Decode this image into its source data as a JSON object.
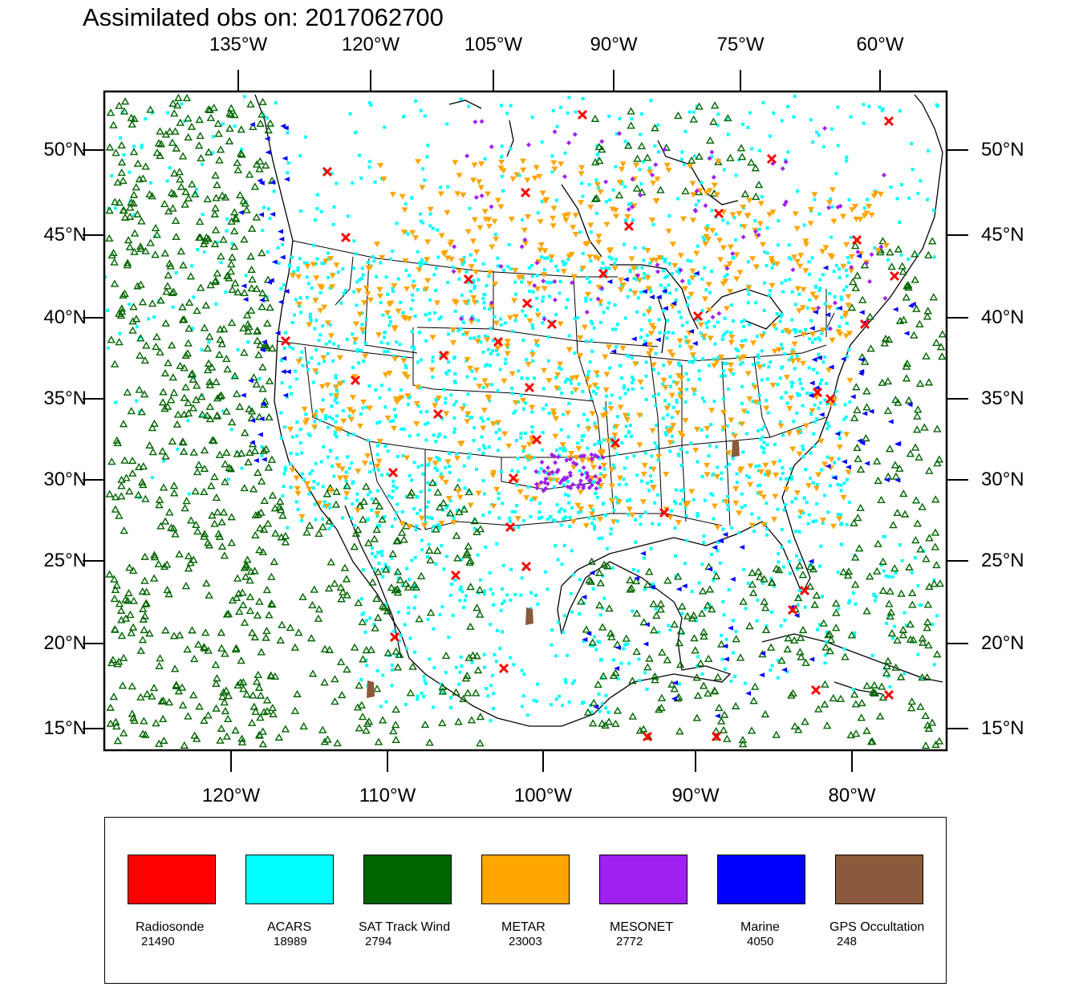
{
  "title": "Assimilated obs on: 2017062700",
  "top_lon_labels": [
    "135°W",
    "120°W",
    "105°W",
    "90°W",
    "75°W",
    "60°W"
  ],
  "bottom_lon_labels": [
    "120°W",
    "110°W",
    "100°W",
    "90°W",
    "80°W"
  ],
  "lat_labels": [
    "50°N",
    "45°N",
    "40°N",
    "35°N",
    "30°N",
    "25°N",
    "20°N",
    "15°N"
  ],
  "legend": [
    {
      "name": "Radiosonde",
      "count": "21490",
      "color": "#ff0000"
    },
    {
      "name": "ACARS",
      "count": "18989",
      "color": "#00ffff"
    },
    {
      "name": "SAT Track Wind",
      "count": "2794",
      "color": "#006400"
    },
    {
      "name": "METAR",
      "count": "23003",
      "color": "#ffa500"
    },
    {
      "name": "MESONET",
      "count": "2772",
      "color": "#a020f0"
    },
    {
      "name": "Marine",
      "count": "4050",
      "color": "#0000ff"
    },
    {
      "name": "GPS Occultation",
      "count": "248",
      "color": "#8b5a3c"
    }
  ]
}
